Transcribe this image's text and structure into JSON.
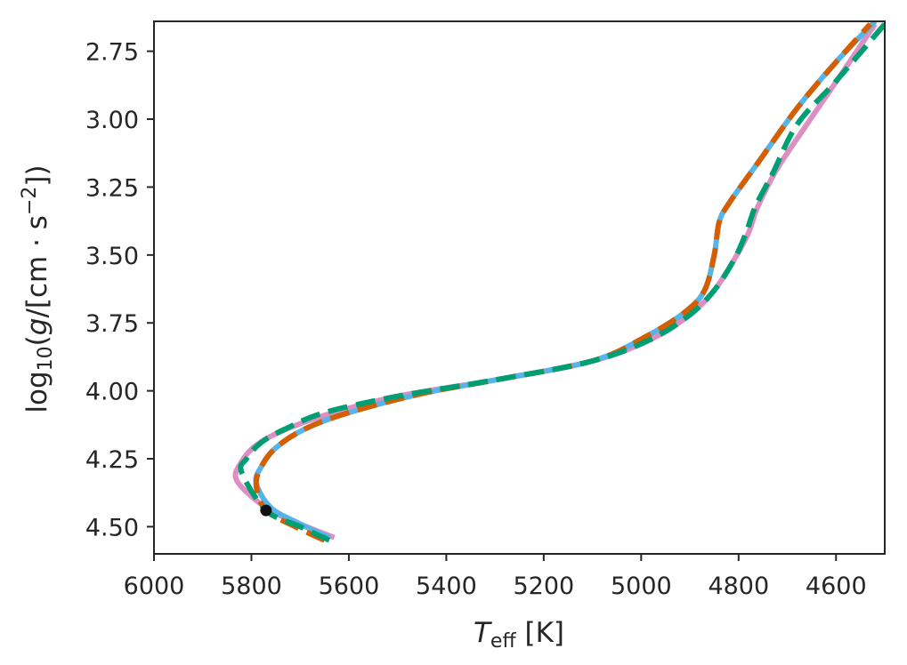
{
  "chart_data": {
    "type": "line",
    "xlabel": "T_eff [K]",
    "ylabel": "log10(g/[cm·s^-2])",
    "xlim": [
      6000,
      4500
    ],
    "ylim": [
      4.6,
      2.64
    ],
    "x_ticks": [
      "6000",
      "5800",
      "5600",
      "5400",
      "5200",
      "5000",
      "4800",
      "4600"
    ],
    "x_tick_values": [
      6000,
      5800,
      5600,
      5400,
      5200,
      5000,
      4800,
      4600
    ],
    "y_ticks": [
      "2.75",
      "3.00",
      "3.25",
      "3.50",
      "3.75",
      "4.00",
      "4.25",
      "4.50"
    ],
    "y_tick_values": [
      2.75,
      3.0,
      3.25,
      3.5,
      3.75,
      4.0,
      4.25,
      4.5
    ],
    "grid": false,
    "legend": "none",
    "series": [
      {
        "color": "#de8fc2",
        "style": "solid",
        "x": [
          5630,
          5700,
          5770,
          5830,
          5820,
          5790,
          5740,
          5650,
          5500,
          5300,
          5100,
          4980,
          4900,
          4850,
          4810,
          4780,
          4760,
          4720,
          4660,
          4580,
          4520
        ],
        "y": [
          4.54,
          4.49,
          4.43,
          4.33,
          4.26,
          4.2,
          4.15,
          4.09,
          4.02,
          3.96,
          3.89,
          3.81,
          3.72,
          3.63,
          3.52,
          3.42,
          3.32,
          3.18,
          3.02,
          2.81,
          2.65
        ]
      },
      {
        "color": "#56b4e9",
        "style": "solid",
        "x": [
          5640,
          5700,
          5760,
          5790,
          5780,
          5750,
          5690,
          5600,
          5450,
          5300,
          5100,
          4990,
          4910,
          4870,
          4850,
          4840,
          4820,
          4760,
          4680,
          4600,
          4520
        ],
        "y": [
          4.54,
          4.49,
          4.43,
          4.34,
          4.28,
          4.21,
          4.14,
          4.08,
          4.01,
          3.96,
          3.89,
          3.8,
          3.71,
          3.63,
          3.5,
          3.38,
          3.31,
          3.16,
          2.96,
          2.79,
          2.64
        ]
      },
      {
        "color": "#d55e00",
        "style": "dashed",
        "x": [
          5650,
          5710,
          5770,
          5790,
          5780,
          5750,
          5690,
          5600,
          5450,
          5300,
          5100,
          4990,
          4910,
          4870,
          4850,
          4840,
          4820,
          4760,
          4680,
          4600,
          4530
        ],
        "y": [
          4.55,
          4.5,
          4.44,
          4.35,
          4.28,
          4.21,
          4.14,
          4.08,
          4.01,
          3.96,
          3.89,
          3.8,
          3.71,
          3.63,
          3.5,
          3.38,
          3.31,
          3.16,
          2.96,
          2.79,
          2.65
        ]
      },
      {
        "color": "#009e73",
        "style": "dashed",
        "x": [
          5640,
          5700,
          5770,
          5820,
          5810,
          5780,
          5730,
          5650,
          5500,
          5300,
          5100,
          4980,
          4900,
          4850,
          4810,
          4785,
          4765,
          4730,
          4680,
          4600,
          4500
        ],
        "y": [
          4.55,
          4.5,
          4.44,
          4.3,
          4.25,
          4.19,
          4.14,
          4.08,
          4.02,
          3.96,
          3.89,
          3.81,
          3.72,
          3.63,
          3.52,
          3.42,
          3.32,
          3.2,
          3.02,
          2.86,
          2.65
        ]
      }
    ],
    "marker": {
      "x": 5770,
      "y": 4.44,
      "color": "#111111"
    }
  }
}
